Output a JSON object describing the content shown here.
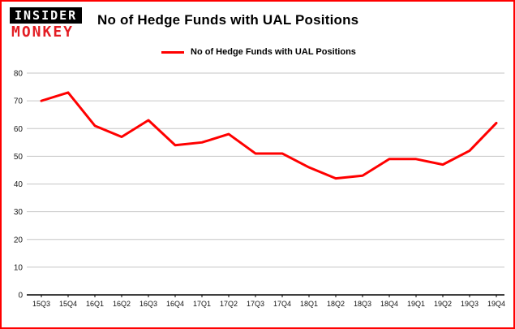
{
  "logo": {
    "top": "INSIDER",
    "bottom": "MONKEY"
  },
  "colors": {
    "brand_red": "#e31e24",
    "line": "#ff0000",
    "grid": "#c6c6c6",
    "axis": "#000000",
    "frame_border": "#ff0000"
  },
  "chart_data": {
    "type": "line",
    "title": "No of Hedge Funds with UAL Positions",
    "legend": "No of Hedge Funds with UAL Positions",
    "categories": [
      "15Q3",
      "15Q4",
      "16Q1",
      "16Q2",
      "16Q3",
      "16Q4",
      "17Q1",
      "17Q2",
      "17Q3",
      "17Q4",
      "18Q1",
      "18Q2",
      "18Q3",
      "18Q4",
      "19Q1",
      "19Q2",
      "19Q3",
      "19Q4"
    ],
    "values": [
      70,
      73,
      61,
      57,
      63,
      54,
      55,
      58,
      51,
      51,
      46,
      42,
      43,
      49,
      49,
      47,
      52,
      62
    ],
    "xlabel": "",
    "ylabel": "",
    "ylim": [
      0,
      80
    ],
    "yticks": [
      0,
      10,
      20,
      30,
      40,
      50,
      60,
      70,
      80
    ],
    "grid": true,
    "legend_position": "top-left"
  }
}
